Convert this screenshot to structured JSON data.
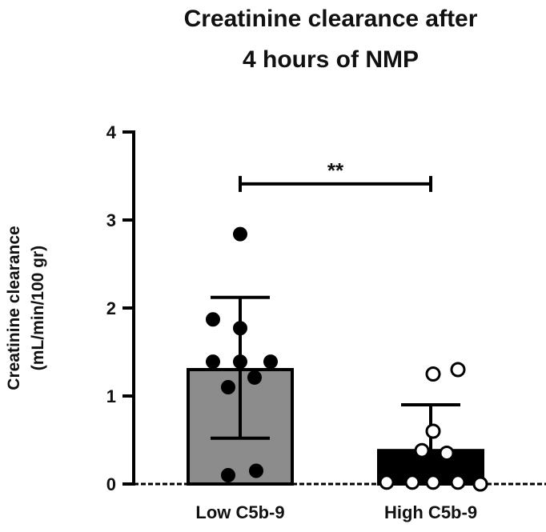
{
  "chart_data": {
    "type": "bar",
    "title_lines": [
      "Creatinine clearance after",
      "4 hours of NMP"
    ],
    "ylabel_lines": [
      "Creatinine clearance",
      "(mL/min/100 gr)"
    ],
    "xlabel": "",
    "ylim": [
      0,
      4
    ],
    "yticks": [
      "0",
      "1",
      "2",
      "3",
      "4"
    ],
    "grid": false,
    "categories": [
      "Low C5b-9",
      "High C5b-9"
    ],
    "values": [
      1.3,
      0.38
    ],
    "error_plus": [
      2.12,
      0.9
    ],
    "error_minus": [
      0.52,
      0.0
    ],
    "bar_colors": [
      "#8c8c8c",
      "#000000"
    ],
    "points": [
      [
        2.84,
        1.87,
        1.77,
        1.39,
        1.39,
        1.39,
        1.21,
        1.1,
        0.15,
        0.1
      ],
      [
        1.3,
        1.25,
        0.6,
        0.38,
        0.35,
        0.02,
        0.02,
        0.02,
        0.02,
        0.0,
        0.0
      ]
    ],
    "point_styles": [
      "filled-black",
      "open-white"
    ],
    "significance": {
      "label": "**",
      "y": 3.41,
      "between": [
        0,
        1
      ]
    }
  }
}
